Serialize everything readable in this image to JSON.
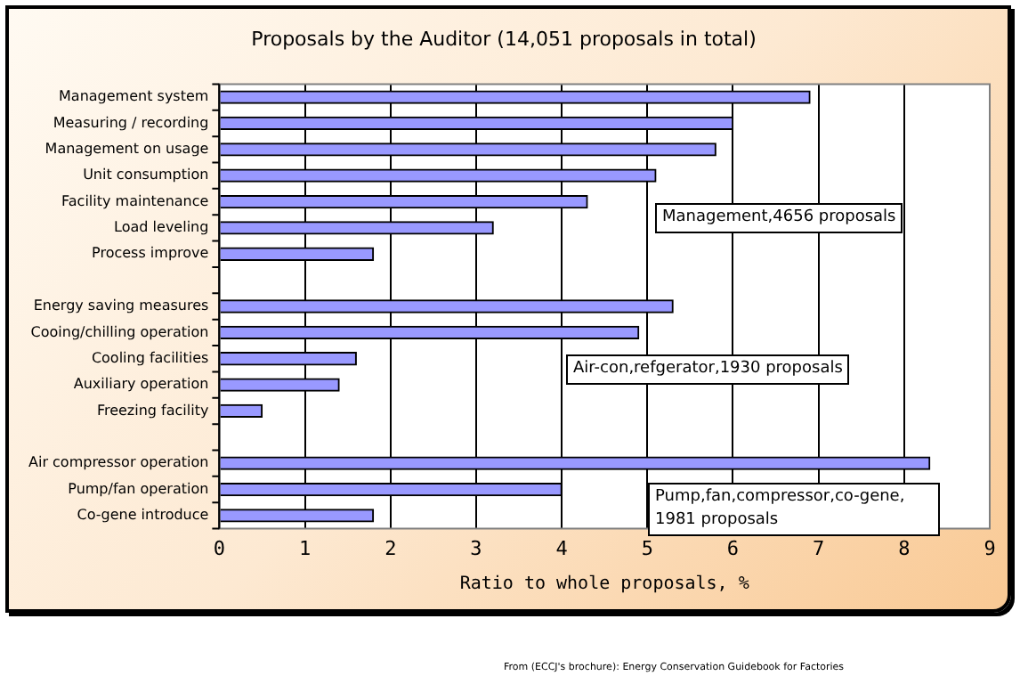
{
  "chart_data": {
    "type": "bar",
    "orientation": "horizontal",
    "title": "Proposals by the Auditor (14,051 proposals in total)",
    "xlabel": "Ratio to whole proposals, %",
    "categories": [
      "Management system",
      "Measuring / recording",
      "Management on usage",
      "Unit consumption",
      "Facility maintenance",
      "Load leveling",
      "Process improve",
      null,
      "Energy saving measures",
      "Cooing/chilling operation",
      "Cooling facilities",
      "Auxiliary operation",
      "Freezing facility",
      null,
      "Air compressor operation",
      "Pump/fan operation",
      "Co-gene introduce"
    ],
    "values": [
      6.9,
      6.0,
      5.8,
      5.1,
      4.3,
      3.2,
      1.8,
      null,
      5.3,
      4.9,
      1.6,
      1.4,
      0.5,
      null,
      8.3,
      4.0,
      1.8
    ],
    "color": "#9999ff",
    "xlim": [
      0,
      9
    ],
    "xticks": [
      0,
      1,
      2,
      3,
      4,
      5,
      6,
      7,
      8,
      9
    ],
    "grid": "x",
    "annotations": [
      "Management,4656 proposals",
      "Air-con,refgerator,1930 proposals",
      "Pump,fan,compressor,co-gene, 1981 proposals",
      "From (ECCJ's brochure): Energy Conservation Guidebook for Factories"
    ]
  }
}
